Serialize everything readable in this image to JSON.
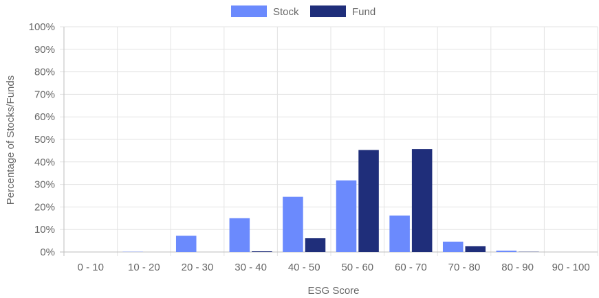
{
  "chart_data": {
    "type": "bar",
    "title": "",
    "xlabel": "ESG Score",
    "ylabel": "Percentage of Stocks/Funds",
    "categories": [
      "0 - 10",
      "10 - 20",
      "20 - 30",
      "30 - 40",
      "40 - 50",
      "50 - 60",
      "60 - 70",
      "70 - 80",
      "80 - 90",
      "90 - 100"
    ],
    "y_ticks": [
      "0%",
      "10%",
      "20%",
      "30%",
      "40%",
      "50%",
      "60%",
      "70%",
      "80%",
      "90%",
      "100%"
    ],
    "ylim": [
      0,
      100
    ],
    "grid": true,
    "legend_position": "top-center",
    "series": [
      {
        "name": "Stock",
        "color": "#6b8afd",
        "values": [
          0,
          0.1,
          7.2,
          15,
          24.5,
          31.8,
          16.2,
          4.6,
          0.6,
          0
        ]
      },
      {
        "name": "Fund",
        "color": "#1f2e7a",
        "values": [
          0,
          0,
          0,
          0.3,
          6.1,
          45.3,
          45.7,
          2.6,
          0.1,
          0
        ]
      }
    ]
  }
}
